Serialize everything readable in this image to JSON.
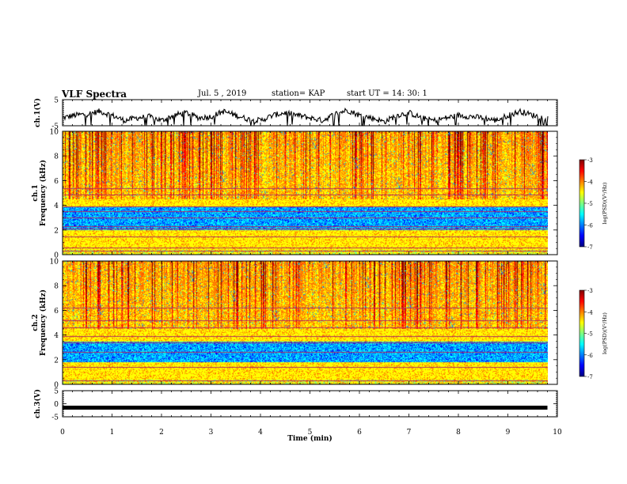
{
  "header": {
    "title": "VLF Spectra",
    "date": "Jul. 5 , 2019",
    "station": "station= KAP",
    "start": "start  UT =   14: 30: 1"
  },
  "colors": {
    "jet": [
      "#00007f",
      "#0000ff",
      "#007fff",
      "#00ffff",
      "#7fff7f",
      "#ffff00",
      "#ff7f00",
      "#ff0000",
      "#7f0000"
    ],
    "trace": "#000000"
  },
  "chart_data": [
    {
      "type": "line",
      "name": "ch1-waveform",
      "ylabel": "ch.1(V)",
      "ylim": [
        -5,
        5
      ],
      "yticks": [
        5,
        -5
      ],
      "xlim": [
        0,
        10
      ],
      "x": [
        0,
        0.25,
        0.5,
        0.75,
        1.0,
        1.25,
        1.5,
        1.75,
        2.0,
        2.25,
        2.5,
        2.75,
        3.0,
        3.25,
        3.5,
        3.75,
        4.0,
        4.25,
        4.5,
        4.75,
        5.0,
        5.25,
        5.5,
        5.75,
        6.0,
        6.25,
        6.5,
        6.75,
        7.0,
        7.25,
        7.5,
        7.75,
        8.0,
        8.25,
        8.5,
        8.75,
        9.0,
        9.25,
        9.5,
        9.75
      ],
      "y": [
        -2,
        -1,
        -0.5,
        0.5,
        -1,
        -3,
        -2,
        -1.5,
        -3,
        -1,
        0,
        -2,
        -1.5,
        0.5,
        -1,
        -2.5,
        -3,
        -1,
        0,
        -1,
        -2,
        -3,
        -0.5,
        1,
        -1,
        -2,
        -3.5,
        -1,
        0,
        -2,
        -3,
        -2,
        -1,
        -1.5,
        -2,
        -3,
        -1,
        0.5,
        -1,
        -2
      ]
    },
    {
      "type": "heatmap",
      "name": "ch1-spectrogram",
      "ylabel": "ch.1 Frequency (kHz)",
      "ylim": [
        0,
        10
      ],
      "yticks": [
        0,
        2,
        4,
        6,
        8,
        10
      ],
      "xlim": [
        0,
        9.8
      ],
      "colorbar": {
        "label": "log(PSD)(V^2/Hz)",
        "range": [
          -7,
          -3
        ],
        "ticks": [
          -3,
          -4,
          -5,
          -6,
          -7
        ]
      },
      "bands_khz": [
        0.3,
        0.6,
        1.5,
        2.1,
        2.3,
        3.0,
        3.5,
        3.9,
        4.9,
        5.4
      ],
      "low_power_band_khz": [
        2.0,
        3.9
      ]
    },
    {
      "type": "heatmap",
      "name": "ch2-spectrogram",
      "ylabel": "ch.2 Frequency (kHz)",
      "ylim": [
        0,
        10
      ],
      "yticks": [
        0,
        2,
        4,
        6,
        8,
        10
      ],
      "xlim": [
        0,
        9.8
      ],
      "colorbar": {
        "label": "log(PSD)(V^2/Hz)",
        "range": [
          -7,
          -3
        ],
        "ticks": [
          -3,
          -4,
          -5,
          -6,
          -7
        ]
      },
      "bands_khz": [
        0.3,
        1.4,
        2.6,
        3.4,
        3.9,
        4.6,
        5.2,
        6.2
      ],
      "low_power_band_khz": [
        1.8,
        3.5
      ]
    },
    {
      "type": "line",
      "name": "ch3-waveform",
      "ylabel": "ch.3(V)",
      "ylim": [
        -5,
        5
      ],
      "yticks": [
        5,
        0,
        -5
      ],
      "xlim": [
        0,
        10
      ],
      "x": [
        0,
        9.8
      ],
      "y": [
        -1.5,
        -1.5
      ]
    }
  ],
  "xaxis": {
    "label": "Time  (min)",
    "ticks": [
      0,
      1,
      2,
      3,
      4,
      5,
      6,
      7,
      8,
      9,
      10
    ]
  },
  "labels": {
    "ch1_v": "ch.1(V)",
    "ch1_freq_a": "ch.1",
    "ch1_freq_b": "Frequency (kHz)",
    "ch2_freq_a": "ch.2",
    "ch2_freq_b": "Frequency (kHz)",
    "ch3_v": "ch.3(V)",
    "cbar": "log(PSD)(V²/Hz)"
  }
}
